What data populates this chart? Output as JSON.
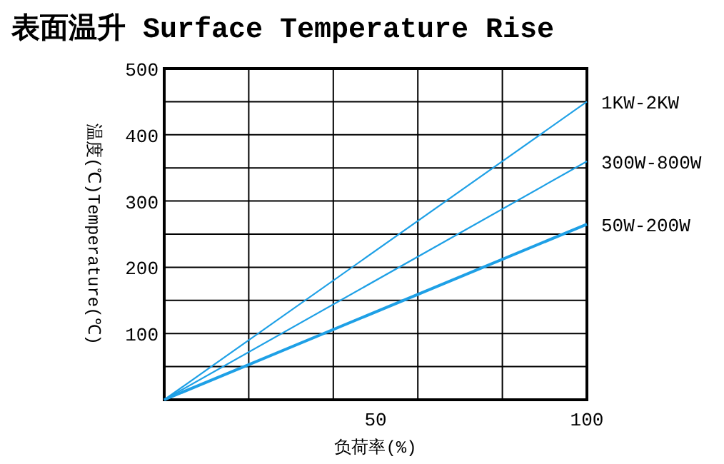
{
  "chart_data": {
    "type": "line",
    "title": "表面温升 Surface Temperature Rise",
    "xlabel": "负荷率(%)",
    "ylabel": "温度(℃)Temperature(℃)",
    "xlim": [
      0,
      100
    ],
    "xticks": [
      {
        "value": 20,
        "label": null
      },
      {
        "value": 40,
        "label": null
      },
      50,
      {
        "value": 60,
        "label": null
      },
      {
        "value": 80,
        "label": null
      },
      100
    ],
    "ylim": [
      0,
      500
    ],
    "yticks": [
      {
        "value": 50,
        "label": null
      },
      100,
      {
        "value": 150,
        "label": null
      },
      200,
      {
        "value": 250,
        "label": null
      },
      300,
      {
        "value": 350,
        "label": null
      },
      400,
      {
        "value": 450,
        "label": null
      },
      500
    ],
    "grid": true,
    "marker": "none",
    "line_style": "solid",
    "x": [
      0,
      100
    ],
    "series": [
      {
        "name": "1KW-2KW",
        "color": "#1ea0e6",
        "values": [
          0,
          450
        ]
      },
      {
        "name": "300W-800W",
        "color": "#1ea0e6",
        "values": [
          0,
          360
        ]
      },
      {
        "name": "50W-200W",
        "color": "#1ea0e6",
        "values": [
          0,
          265
        ]
      }
    ]
  }
}
